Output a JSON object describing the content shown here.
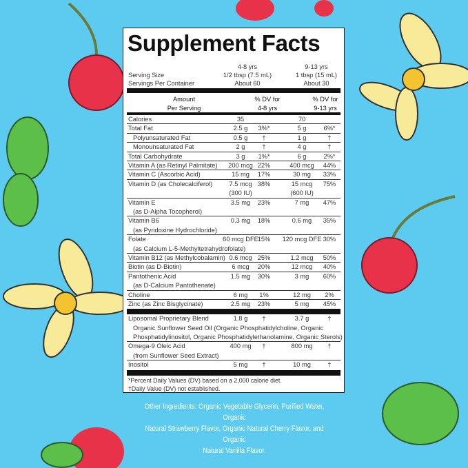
{
  "title": "Supplement Facts",
  "age_groups": [
    "4-8 yrs",
    "9-13 yrs"
  ],
  "serving_size": {
    "label": "Serving Size",
    "values": [
      "1/2 tbsp (7.5 mL)",
      "1 tbsp (15 mL)"
    ]
  },
  "servings_per_container": {
    "label": "Servings Per Container",
    "values": [
      "About 60",
      "About 30"
    ]
  },
  "column_headers": {
    "amount": [
      "Amount",
      "Per Serving"
    ],
    "dv1": [
      "% DV for",
      "4-8 yrs"
    ],
    "dv2": [
      "% DV for",
      "9-13 yrs"
    ]
  },
  "rows": [
    {
      "name": "Calories",
      "a1": "35",
      "d1": "",
      "a2": "70",
      "d2": ""
    },
    {
      "name": "Total Fat",
      "a1": "2.5 g",
      "d1": "3%*",
      "a2": "5 g",
      "d2": "6%*"
    },
    {
      "name": "Polyunsaturated Fat",
      "indent": true,
      "a1": "0.5 g",
      "d1": "†",
      "a2": "1 g",
      "d2": "†"
    },
    {
      "name": "Monounsaturated Fat",
      "indent": true,
      "a1": "2 g",
      "d1": "†",
      "a2": "4 g",
      "d2": "†"
    },
    {
      "name": "Total Carbohydrate",
      "a1": "3 g",
      "d1": "1%*",
      "a2": "6 g",
      "d2": "2%*"
    },
    {
      "name": "Vitamin A (as Retinyl Palmitate)",
      "a1": "200 mcg",
      "d1": "22%",
      "a2": "400 mcg",
      "d2": "44%"
    },
    {
      "name": "Vitamin C (Ascorbic Acid)",
      "a1": "15 mg",
      "d1": "17%",
      "a2": "30 mg",
      "d2": "33%"
    },
    {
      "name": "Vitamin D (as Cholecalciferol)",
      "a1": "7.5 mcg",
      "a1b": "(300 IU)",
      "d1": "38%",
      "a2": "15 mcg",
      "a2b": "(600 IU)",
      "d2": "75%"
    },
    {
      "name": "Vitamin E",
      "sub": "(as D-Alpha Tocopherol)",
      "a1": "3.5 mg",
      "d1": "23%",
      "a2": "7 mg",
      "d2": "47%"
    },
    {
      "name": "Vitamin B6",
      "sub": "(as Pyridoxine Hydrochloride)",
      "a1": "0.3 mg",
      "d1": "18%",
      "a2": "0.6 mg",
      "d2": "35%"
    },
    {
      "name": "Folate",
      "sub": "(as Calcium L-5-Methyltetrahydrofolate)",
      "a1": "60 mcg DFE",
      "d1": "15%",
      "a2": "120 mcg DFE",
      "d2": "30%"
    },
    {
      "name": "Vitamin B12 (as Methylcobalamin)",
      "a1": "0.6 mcg",
      "d1": "25%",
      "a2": "1.2 mcg",
      "d2": "50%"
    },
    {
      "name": "Biotin (as D-Biotin)",
      "a1": "6 mcg",
      "d1": "20%",
      "a2": "12 mcg",
      "d2": "40%"
    },
    {
      "name": "Pantothenic Acid",
      "sub": "(as D-Calcium Pantothenate)",
      "a1": "1.5 mg",
      "d1": "30%",
      "a2": "3 mg",
      "d2": "60%"
    },
    {
      "name": "Choline",
      "a1": "6 mg",
      "d1": "1%",
      "a2": "12 mg",
      "d2": "2%"
    },
    {
      "name": "Zinc (as Zinc Bisglycinate)",
      "a1": "2.5 mg",
      "d1": "23%",
      "a2": "5 mg",
      "d2": "45%",
      "last": true
    }
  ],
  "rows2": [
    {
      "name": "Liposomal Proprietary Blend",
      "sub": "Organic Sunflower Seed Oil (Organic Phosphatidylcholine, Organic",
      "sub2": "Phosphatidylinositol, Organic Phosphatidylethanolamine, Organic Sterols)",
      "a1": "1.8 g",
      "d1": "†",
      "a2": "3.7 g",
      "d2": "†"
    },
    {
      "name": "Omega-9 Oleic Acid",
      "sub": "(from Sunflower Seed Extract)",
      "a1": "400 mg",
      "d1": "†",
      "a2": "800 mg",
      "d2": "†"
    },
    {
      "name": "Inositol",
      "a1": "5 mg",
      "d1": "†",
      "a2": "10 mg",
      "d2": "†",
      "last": true
    }
  ],
  "footnotes": [
    "*Percent Daily Values (DV) based on a 2,000 calorie diet.",
    "†Daily Value (DV) not established."
  ],
  "other_ingredients": [
    "Other Ingredients: Organic Vegetable Glycerin, Purified Water, Organic",
    "Natural Strawberry Flavor, Organic Natural Cherry Flavor, and Organic",
    "Natural Vanilla Flavor."
  ],
  "colors": {
    "background": "#5ccbef",
    "cherry": "#e8324a",
    "leaf": "#5cbf4a",
    "flower": "#f7eb9a"
  }
}
